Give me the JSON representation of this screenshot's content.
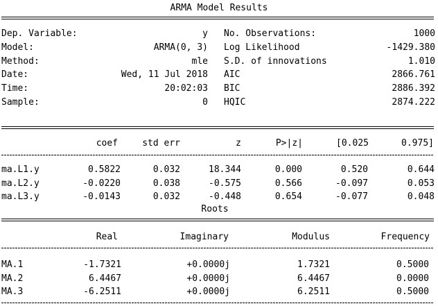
{
  "title": "ARMA Model Results",
  "summary": {
    "left": [
      {
        "label": "Dep. Variable:",
        "value": "y"
      },
      {
        "label": "Model:",
        "value": "ARMA(0, 3)"
      },
      {
        "label": "Method:",
        "value": "mle"
      },
      {
        "label": "Date:",
        "value": "Wed, 11 Jul 2018"
      },
      {
        "label": "Time:",
        "value": "20:02:03"
      },
      {
        "label": "Sample:",
        "value": "0"
      }
    ],
    "right": [
      {
        "label": "No. Observations:",
        "value": "1000"
      },
      {
        "label": "Log Likelihood",
        "value": "-1429.380"
      },
      {
        "label": "S.D. of innovations",
        "value": "1.010"
      },
      {
        "label": "AIC",
        "value": "2866.761"
      },
      {
        "label": "BIC",
        "value": "2886.392"
      },
      {
        "label": "HQIC",
        "value": "2874.222"
      }
    ]
  },
  "coef_table": {
    "headers": [
      "coef",
      "std err",
      "z",
      "P>|z|",
      "[0.025",
      "0.975]"
    ],
    "rows": [
      {
        "name": "ma.L1.y",
        "values": [
          "0.5822",
          "0.032",
          "18.344",
          "0.000",
          "0.520",
          "0.644"
        ]
      },
      {
        "name": "ma.L2.y",
        "values": [
          "-0.0220",
          "0.038",
          "-0.575",
          "0.566",
          "-0.097",
          "0.053"
        ]
      },
      {
        "name": "ma.L3.y",
        "values": [
          "-0.0143",
          "0.032",
          "-0.448",
          "0.654",
          "-0.077",
          "0.048"
        ]
      }
    ]
  },
  "roots": {
    "title": "Roots",
    "headers": [
      "Real",
      "Imaginary",
      "Modulus",
      "Frequency"
    ],
    "rows": [
      {
        "name": "MA.1",
        "values": [
          "-1.7321",
          "+0.0000j",
          "1.7321",
          "0.5000"
        ]
      },
      {
        "name": "MA.2",
        "values": [
          "6.4467",
          "+0.0000j",
          "6.4467",
          "0.0000"
        ]
      },
      {
        "name": "MA.3",
        "values": [
          "-6.2511",
          "+0.0000j",
          "6.2511",
          "0.5000"
        ]
      }
    ]
  }
}
